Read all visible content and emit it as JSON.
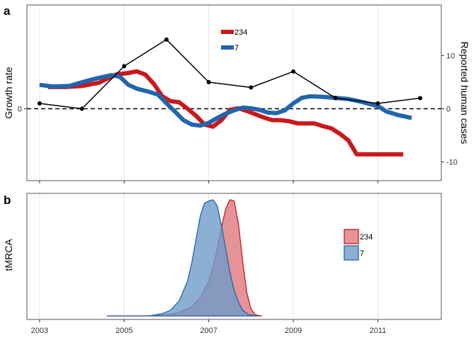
{
  "colors": {
    "red": "#cb181d",
    "blue": "#2166ac",
    "black": "#000000",
    "grid": "#e5e5e5",
    "panel_border": "#555555"
  },
  "chart_data": [
    {
      "panel": "a",
      "type": "line",
      "ylabel_left": "Growth rate",
      "ylabel_right": "Reported human cases",
      "xlim": [
        2002.7,
        2012.5
      ],
      "x_ticks": [
        2003,
        2005,
        2007,
        2009,
        2011
      ],
      "y_right_lim": [
        -13.5,
        19.5
      ],
      "y_right_ticks": [
        -10,
        0,
        10
      ],
      "y_left_tick_labels": [
        "0"
      ],
      "zero_line": "dashed",
      "legend": {
        "placement": "top-center"
      },
      "series": [
        {
          "name": "234",
          "color": "#cb181d",
          "x": [
            2003.2,
            2003.6,
            2004.0,
            2004.4,
            2004.8,
            2005.1,
            2005.3,
            2005.5,
            2005.7,
            2005.9,
            2006.1,
            2006.3,
            2006.5,
            2006.7,
            2006.9,
            2007.1,
            2007.3,
            2007.5,
            2007.7,
            2007.9,
            2008.1,
            2008.3,
            2008.5,
            2008.7,
            2008.9,
            2009.1,
            2009.3,
            2009.5,
            2009.7,
            2009.9,
            2010.1,
            2010.3,
            2010.5,
            2010.7,
            2010.9,
            2011.1,
            2011.3,
            2011.6
          ],
          "y": [
            4.0,
            4.0,
            4.2,
            4.8,
            6.3,
            6.6,
            6.9,
            6.3,
            4.6,
            2.3,
            1.4,
            1.2,
            0.0,
            -1.3,
            -2.9,
            -3.3,
            -2.1,
            -0.2,
            0.1,
            -0.4,
            -1.0,
            -1.6,
            -2.1,
            -2.1,
            -2.3,
            -2.7,
            -2.7,
            -2.7,
            -3.2,
            -3.6,
            -4.6,
            -5.8,
            -8.4,
            -8.4,
            -8.4,
            -8.4,
            -8.4,
            -8.4
          ]
        },
        {
          "name": "7",
          "color": "#2166ac",
          "x": [
            2003.0,
            2003.3,
            2003.7,
            2004.1,
            2004.4,
            2004.7,
            2004.9,
            2005.1,
            2005.3,
            2005.6,
            2005.8,
            2006.0,
            2006.2,
            2006.4,
            2006.6,
            2006.8,
            2007.0,
            2007.2,
            2007.4,
            2007.6,
            2007.8,
            2008.0,
            2008.2,
            2008.4,
            2008.6,
            2008.8,
            2009.0,
            2009.2,
            2009.4,
            2009.7,
            2010.0,
            2010.3,
            2010.6,
            2010.8,
            2011.0,
            2011.2,
            2011.5,
            2011.8
          ],
          "y": [
            4.4,
            4.1,
            4.2,
            5.1,
            5.7,
            6.2,
            5.9,
            4.4,
            3.7,
            3.1,
            2.6,
            1.0,
            -0.5,
            -2.1,
            -2.9,
            -3.1,
            -2.6,
            -1.7,
            -0.9,
            -0.3,
            0.2,
            0.1,
            -0.2,
            -0.7,
            -0.8,
            -0.3,
            1.0,
            2.0,
            2.3,
            2.2,
            2.0,
            1.8,
            1.3,
            0.9,
            0.5,
            -0.5,
            -1.2,
            -1.7
          ]
        },
        {
          "name": "",
          "color": "#000000",
          "axis": "right",
          "marker": "point",
          "x": [
            2003,
            2004,
            2005,
            2006,
            2007,
            2008,
            2009,
            2010,
            2011,
            2012
          ],
          "y": [
            1,
            0,
            8,
            13,
            5,
            4,
            7,
            2,
            1,
            2
          ]
        }
      ]
    },
    {
      "panel": "b",
      "type": "area",
      "ylabel": "tMRCA",
      "xlim": [
        2002.7,
        2012.5
      ],
      "x_ticks": [
        2003,
        2005,
        2007,
        2009,
        2011
      ],
      "x_tick_labels": [
        "2003",
        "2005",
        "2007",
        "2009",
        "2011"
      ],
      "ylim": [
        0,
        1.05
      ],
      "legend": {
        "placement": "right"
      },
      "series": [
        {
          "name": "234",
          "color": "#cb181d",
          "fill": "#e0787e",
          "x": [
            2004.6,
            2005.5,
            2006.0,
            2006.3,
            2006.6,
            2006.8,
            2007.0,
            2007.1,
            2007.2,
            2007.3,
            2007.4,
            2007.5,
            2007.6,
            2007.7,
            2007.8,
            2007.9,
            2008.0,
            2008.1,
            2008.25
          ],
          "y": [
            0,
            0,
            0.01,
            0.03,
            0.08,
            0.16,
            0.3,
            0.42,
            0.58,
            0.76,
            0.92,
            1.0,
            0.99,
            0.8,
            0.48,
            0.2,
            0.06,
            0.01,
            0
          ]
        },
        {
          "name": "7",
          "color": "#2166ac",
          "fill": "#6f9bc9",
          "x": [
            2004.6,
            2005.6,
            2005.9,
            2006.1,
            2006.3,
            2006.5,
            2006.6,
            2006.7,
            2006.8,
            2006.9,
            2007.0,
            2007.1,
            2007.2,
            2007.3,
            2007.4,
            2007.5,
            2007.6,
            2007.7,
            2007.8,
            2007.95,
            2008.2
          ],
          "y": [
            0,
            0,
            0.02,
            0.05,
            0.13,
            0.3,
            0.46,
            0.66,
            0.86,
            0.97,
            0.99,
            1.0,
            0.95,
            0.78,
            0.58,
            0.38,
            0.22,
            0.12,
            0.05,
            0.01,
            0
          ]
        }
      ]
    }
  ]
}
